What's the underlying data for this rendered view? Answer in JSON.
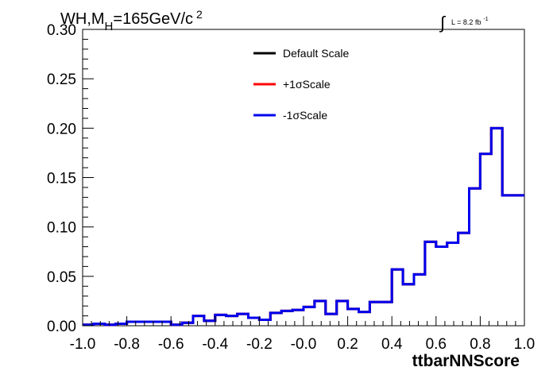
{
  "chart_data": {
    "type": "line",
    "title": "WH,M_H=165GeV/c^2",
    "title_parts": {
      "base": "WH,M",
      "sub": "H",
      "mid": "=165GeV/c",
      "sup": "2"
    },
    "xlabel": "ttbarNNScore",
    "ylabel": "",
    "lumi": {
      "integral": "∫",
      "text": "L = 8.2 fb",
      "sup": "-1"
    },
    "xlim": [
      -1.0,
      1.0
    ],
    "ylim": [
      0.0,
      0.3
    ],
    "x_ticks": [
      "-1.0",
      "-0.8",
      "-0.6",
      "-0.4",
      "-0.2",
      "-0.0",
      "0.2",
      "0.4",
      "0.6",
      "0.8",
      "1.0"
    ],
    "y_ticks": [
      "0.00",
      "0.05",
      "0.10",
      "0.15",
      "0.20",
      "0.25",
      "0.30"
    ],
    "grid": false,
    "legend_position": "top-center",
    "bin_edges": [
      -1.0,
      -0.95,
      -0.9,
      -0.85,
      -0.8,
      -0.75,
      -0.7,
      -0.65,
      -0.6,
      -0.55,
      -0.5,
      -0.45,
      -0.4,
      -0.35,
      -0.3,
      -0.25,
      -0.2,
      -0.15,
      -0.1,
      -0.05,
      0.0,
      0.05,
      0.1,
      0.15,
      0.2,
      0.25,
      0.3,
      0.35,
      0.4,
      0.45,
      0.5,
      0.55,
      0.6,
      0.65,
      0.7,
      0.75,
      0.8,
      0.85,
      0.9,
      0.95,
      1.0
    ],
    "series": [
      {
        "name": "Default Scale",
        "color": "#000000",
        "values": [
          0.001,
          0.002,
          0.001,
          0.002,
          0.004,
          0.004,
          0.004,
          0.004,
          0.001,
          0.003,
          0.01,
          0.005,
          0.011,
          0.01,
          0.012,
          0.008,
          0.006,
          0.013,
          0.015,
          0.016,
          0.019,
          0.025,
          0.012,
          0.025,
          0.017,
          0.014,
          0.024,
          0.024,
          0.057,
          0.042,
          0.052,
          0.085,
          0.08,
          0.084,
          0.094,
          0.139,
          0.174,
          0.2,
          0.132,
          0.132
        ]
      },
      {
        "name": "+1σScale",
        "color": "#ff0000",
        "values": [
          0.001,
          0.002,
          0.001,
          0.002,
          0.004,
          0.004,
          0.004,
          0.004,
          0.001,
          0.003,
          0.01,
          0.005,
          0.011,
          0.01,
          0.012,
          0.008,
          0.006,
          0.013,
          0.015,
          0.016,
          0.019,
          0.025,
          0.012,
          0.025,
          0.017,
          0.014,
          0.024,
          0.024,
          0.057,
          0.042,
          0.052,
          0.085,
          0.08,
          0.084,
          0.094,
          0.139,
          0.174,
          0.2,
          0.132,
          0.132
        ]
      },
      {
        "name": "-1σScale",
        "color": "#0000ee",
        "values": [
          0.001,
          0.002,
          0.001,
          0.002,
          0.004,
          0.004,
          0.004,
          0.004,
          0.001,
          0.003,
          0.01,
          0.005,
          0.011,
          0.01,
          0.012,
          0.008,
          0.006,
          0.013,
          0.015,
          0.016,
          0.019,
          0.025,
          0.012,
          0.025,
          0.017,
          0.014,
          0.024,
          0.024,
          0.057,
          0.042,
          0.052,
          0.085,
          0.08,
          0.084,
          0.094,
          0.139,
          0.174,
          0.2,
          0.132,
          0.132
        ]
      }
    ]
  }
}
